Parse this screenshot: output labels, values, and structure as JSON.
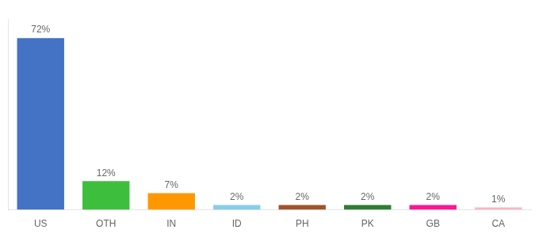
{
  "chart_data": {
    "type": "bar",
    "categories": [
      "US",
      "OTH",
      "IN",
      "ID",
      "PH",
      "PK",
      "GB",
      "CA"
    ],
    "values": [
      72,
      12,
      7,
      2,
      2,
      2,
      2,
      1
    ],
    "value_labels": [
      "72%",
      "12%",
      "7%",
      "2%",
      "2%",
      "2%",
      "2%",
      "1%"
    ],
    "colors": [
      "#4472C4",
      "#3DBF3D",
      "#FF9800",
      "#87CEEB",
      "#A0522D",
      "#2E7D32",
      "#FF1493",
      "#FFB6C1"
    ],
    "ylim": [
      0,
      80
    ],
    "grid": false,
    "tick_labels": "x",
    "data_labels": true
  }
}
